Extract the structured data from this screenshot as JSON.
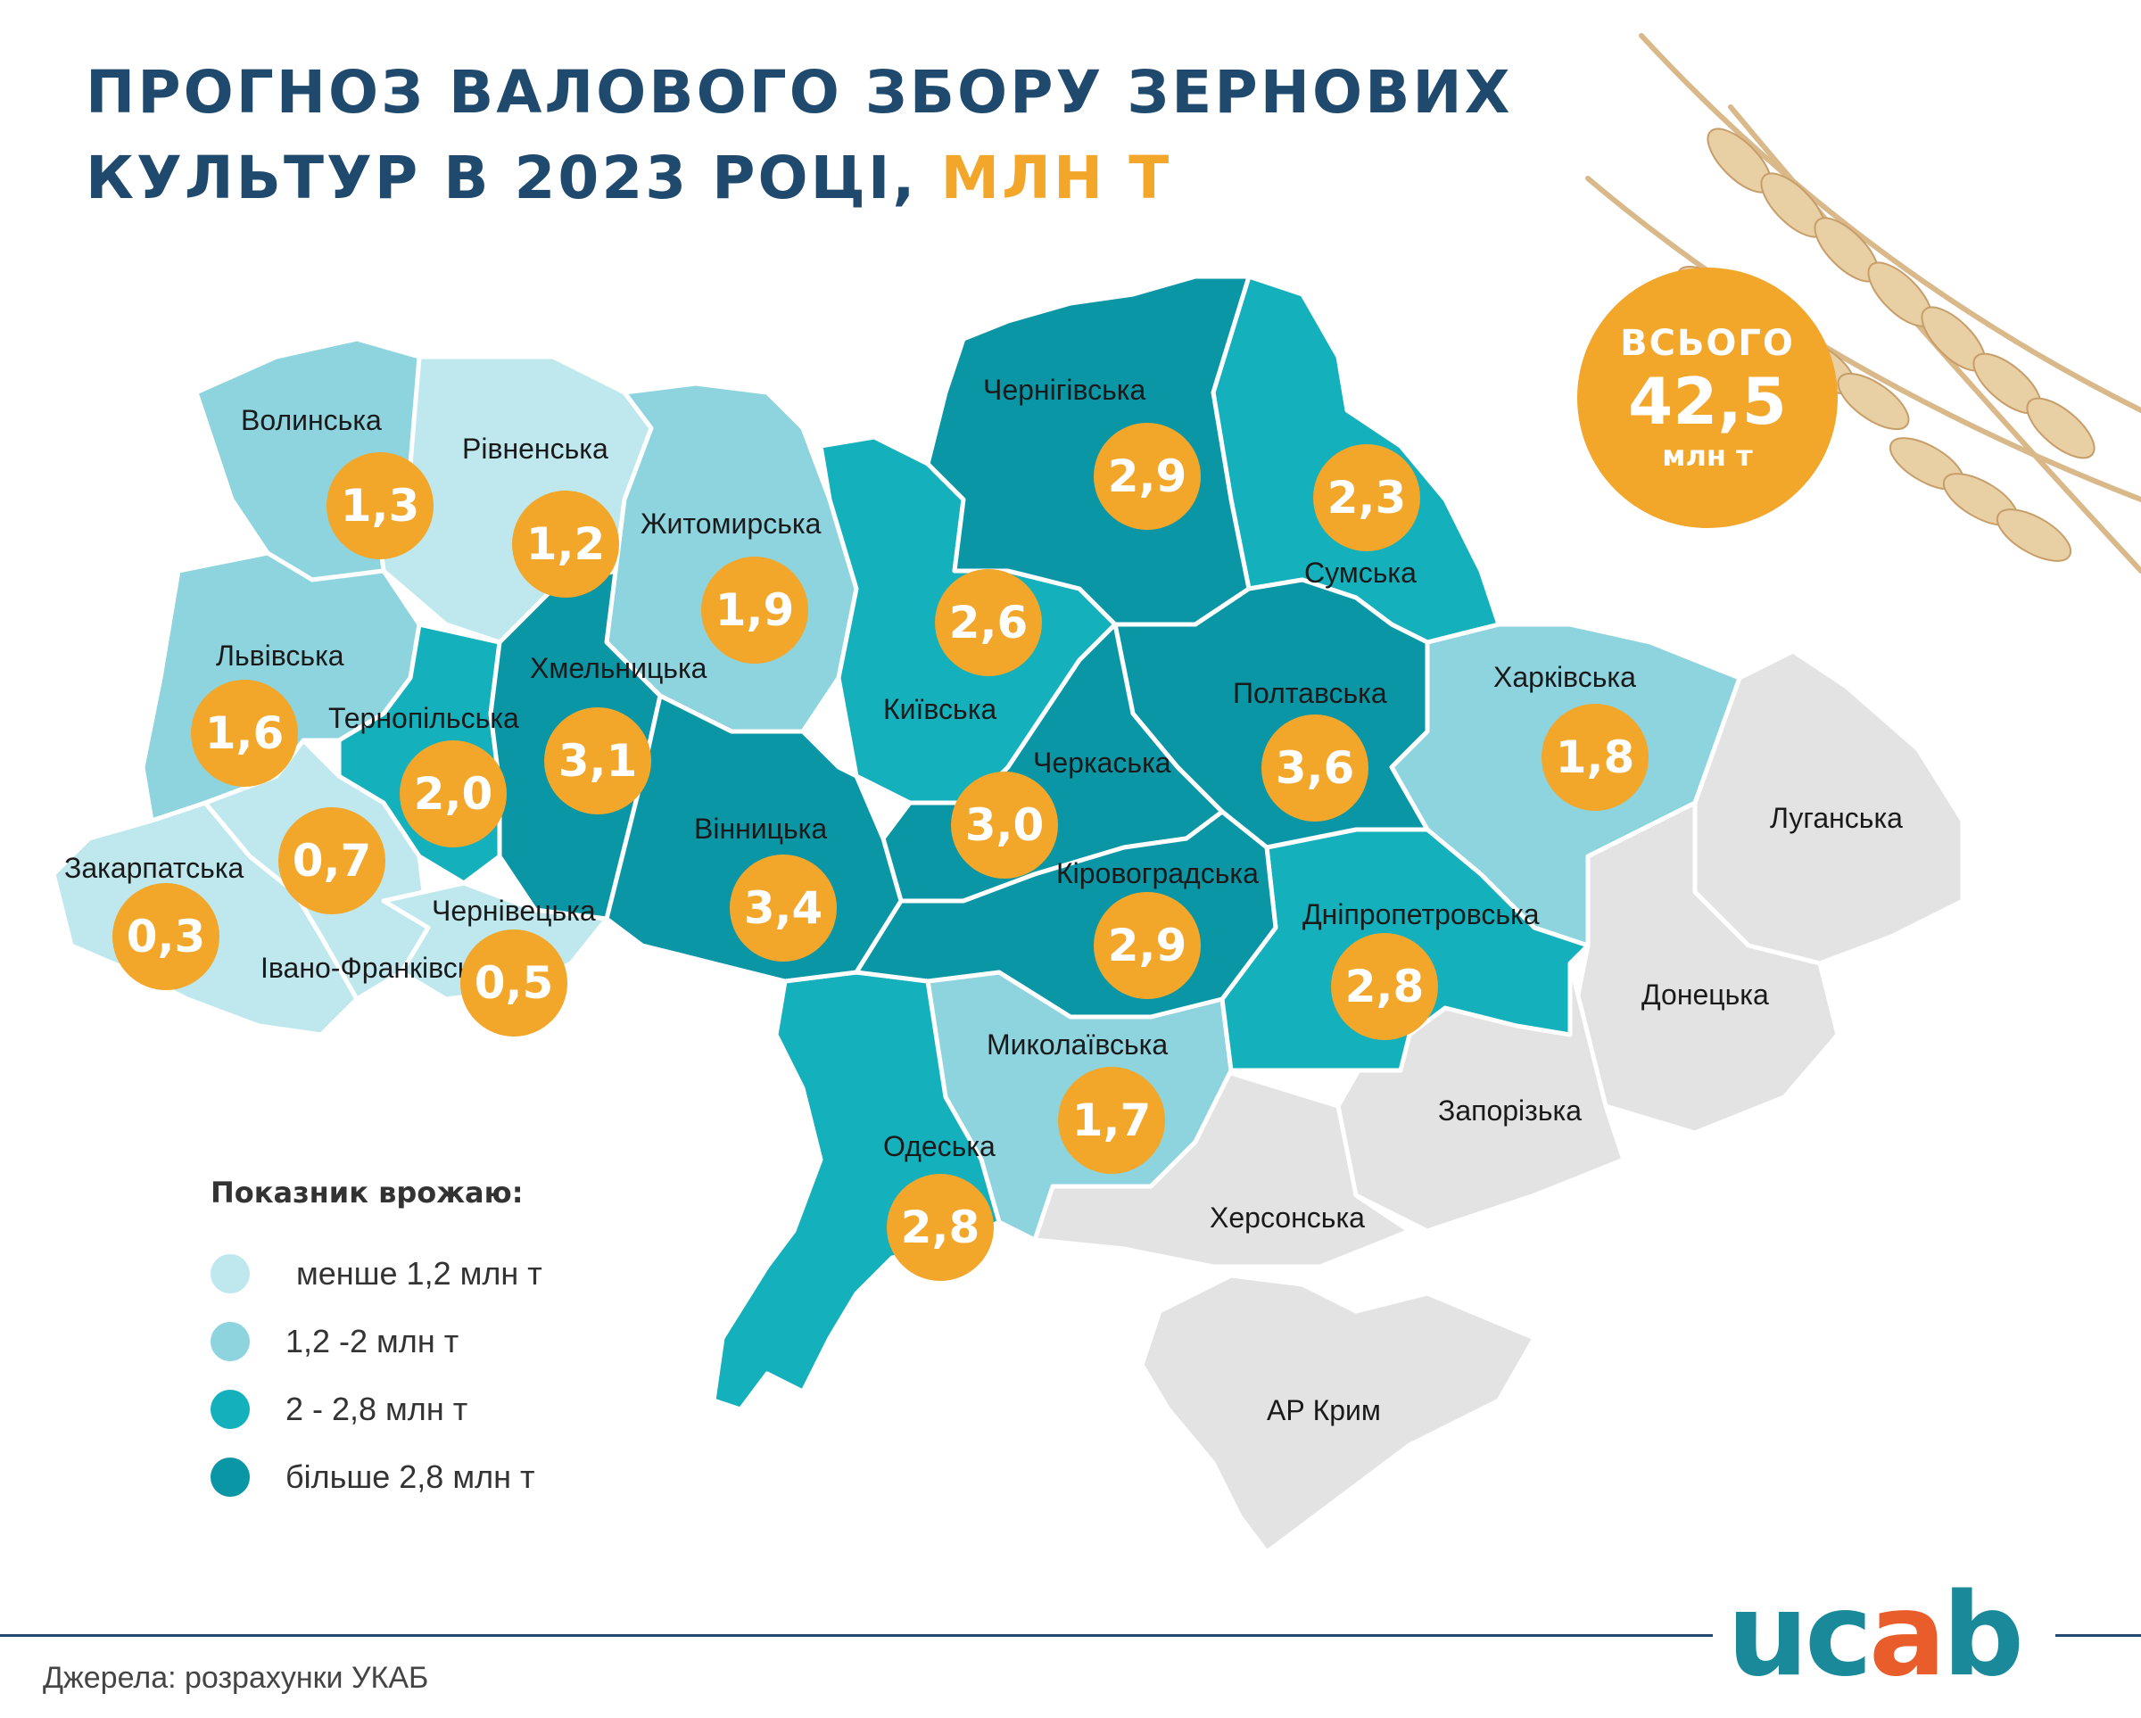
{
  "title": {
    "line1": "ПРОГНОЗ ВАЛОВОГО ЗБОРУ ЗЕРНОВИХ",
    "line2": "КУЛЬТУР В 2023 РОЦІ,",
    "unit": "МЛН Т"
  },
  "total": {
    "label": "ВСЬОГО",
    "value": "42,5",
    "unit": "млн т"
  },
  "colors": {
    "lt1_2": "#bfe8ee",
    "b1_2_2": "#8dd4df",
    "b2_2_8": "#14b0bc",
    "gt2_8": "#0b96a6",
    "occupied": "#e3e3e3",
    "badge": "#f2a62a",
    "title": "#1f4a6e"
  },
  "legend": {
    "title": "Показник врожаю:",
    "items": [
      {
        "label": "менше 1,2 млн т",
        "color": "#bfe8ee"
      },
      {
        "label": "1,2 -2 млн т",
        "color": "#8dd4df"
      },
      {
        "label": "2 - 2,8 млн т",
        "color": "#14b0bc"
      },
      {
        "label": "більше 2,8 млн т",
        "color": "#0b96a6"
      }
    ]
  },
  "regions": [
    {
      "name": "Волинська",
      "value": "1,3"
    },
    {
      "name": "Рівненська",
      "value": "1,2"
    },
    {
      "name": "Житомирська",
      "value": "1,9"
    },
    {
      "name": "Чернігівська",
      "value": "2,9"
    },
    {
      "name": "Сумська",
      "value": "2,3"
    },
    {
      "name": "Київська",
      "value": "2,6"
    },
    {
      "name": "Львівська",
      "value": "1,6"
    },
    {
      "name": "Тернопільська",
      "value": "2,0"
    },
    {
      "name": "Хмельницька",
      "value": "3,1"
    },
    {
      "name": "Полтавська",
      "value": "3,6"
    },
    {
      "name": "Харківська",
      "value": "1,8"
    },
    {
      "name": "Черкаська",
      "value": "3,0"
    },
    {
      "name": "Вінницька",
      "value": "3,4"
    },
    {
      "name": "Закарпатська",
      "value": "0,3"
    },
    {
      "name": "Івано-Франківська",
      "value": "0,7"
    },
    {
      "name": "Чернівецька",
      "value": "0,5"
    },
    {
      "name": "Кіровоградська",
      "value": "2,9"
    },
    {
      "name": "Дніпропетровська",
      "value": "2,8"
    },
    {
      "name": "Миколаївська",
      "value": "1,7"
    },
    {
      "name": "Одеська",
      "value": "2,8"
    },
    {
      "name": "Луганська",
      "value": ""
    },
    {
      "name": "Донецька",
      "value": ""
    },
    {
      "name": "Запорізька",
      "value": ""
    },
    {
      "name": "Херсонська",
      "value": ""
    },
    {
      "name": "АР Крим",
      "value": ""
    }
  ],
  "source": "Джерела: розрахунки УКАБ",
  "logo": {
    "text": "ucab"
  }
}
